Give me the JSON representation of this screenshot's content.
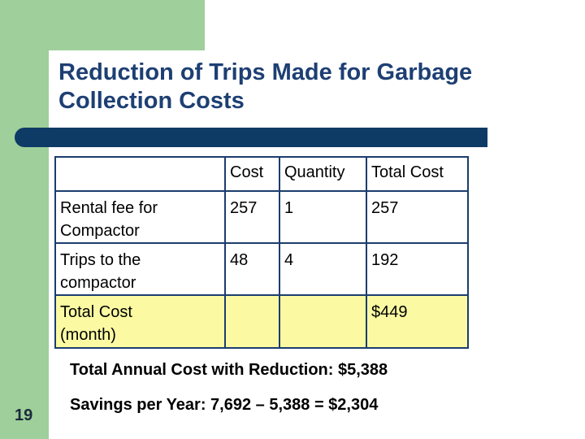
{
  "header": {
    "title": "Reduction of Trips Made for Garbage\nCollection Costs"
  },
  "table": {
    "columns": [
      "Cost",
      "Quantity",
      "Total Cost"
    ],
    "rows": [
      {
        "label": "Rental fee for\nCompactor",
        "cost": 257,
        "quantity": 1,
        "total": 257
      },
      {
        "label": "Trips to the\ncompactor",
        "cost": 48,
        "quantity": 4,
        "total": 192
      },
      {
        "label": "Total Cost\n(month)",
        "total": "$449"
      }
    ]
  },
  "notes": [
    "Total Annual Cost with Reduction:  $5,388",
    "Savings per Year: 7,692 – 5,388 = $2,304"
  ],
  "slide_number": "19"
}
